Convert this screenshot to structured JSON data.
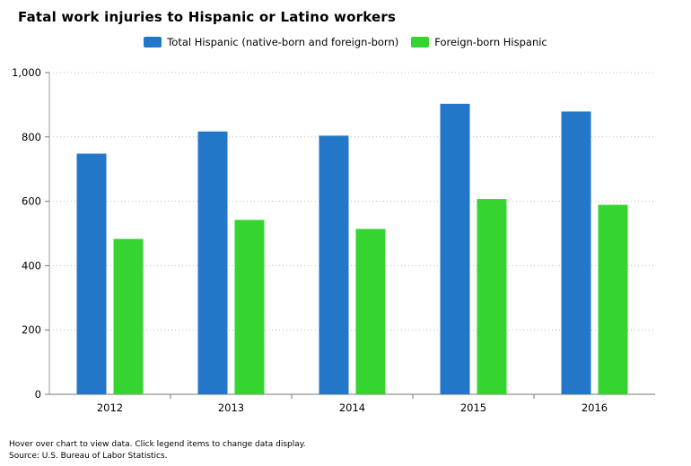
{
  "chart_data": {
    "type": "bar",
    "title": "Fatal work injuries to Hispanic or Latino workers",
    "categories": [
      "2012",
      "2013",
      "2014",
      "2015",
      "2016"
    ],
    "series": [
      {
        "name": "Total Hispanic (native-born and foreign-born)",
        "values": [
          748,
          817,
          804,
          903,
          879
        ],
        "color": "#2377c9"
      },
      {
        "name": "Foreign-born Hispanic",
        "values": [
          483,
          542,
          514,
          607,
          589
        ],
        "color": "#35d430"
      }
    ],
    "ylim": [
      0,
      1000
    ],
    "yticks": [
      "0",
      "200",
      "400",
      "600",
      "800",
      "1,000"
    ],
    "xlabel": "",
    "ylabel": "",
    "grid": true,
    "legend_position": "top-center"
  },
  "footer": {
    "note": "Hover over chart to view data. Click legend items to change data display.",
    "source": "Source: U.S. Bureau of Labor Statistics."
  }
}
